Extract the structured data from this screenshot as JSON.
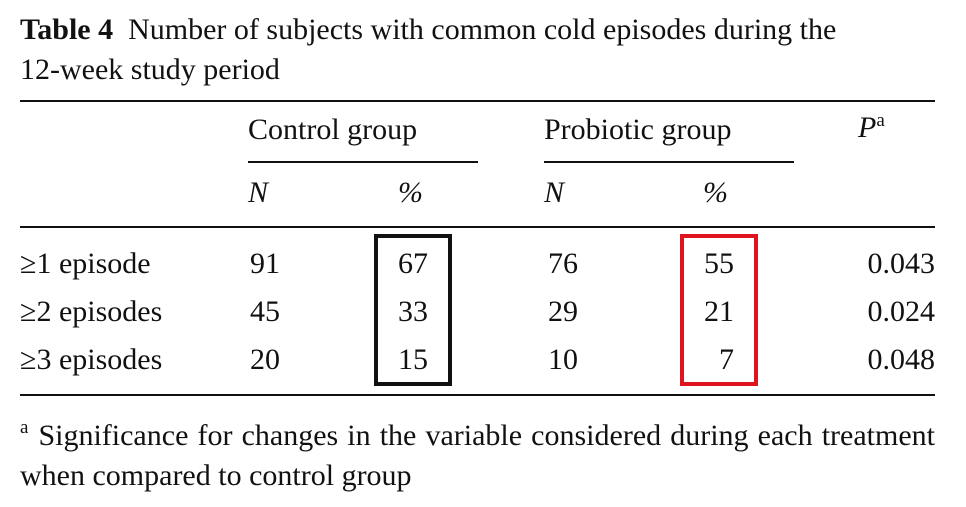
{
  "caption": {
    "label": "Table 4",
    "line1": "Number of subjects with common cold episodes during the",
    "line2": "12-week study period"
  },
  "header": {
    "control_group": "Control group",
    "probiotic_group": "Probiotic group",
    "p_label": "P",
    "p_superscript": "a",
    "n": "N",
    "pct": "%"
  },
  "rows": [
    {
      "label": "≥1 episode",
      "control_n": "91",
      "control_pct": "67",
      "probiotic_n": "76",
      "probiotic_pct": "55",
      "p": "0.043"
    },
    {
      "label": "≥2 episodes",
      "control_n": "45",
      "control_pct": "33",
      "probiotic_n": "29",
      "probiotic_pct": "21",
      "p": "0.024"
    },
    {
      "label": "≥3 episodes",
      "control_n": "20",
      "control_pct": "15",
      "probiotic_n": "10",
      "probiotic_pct": "7",
      "p": "0.048"
    }
  ],
  "footnote": {
    "marker": "a",
    "text": "Significance for changes in the variable considered during each treatment when compared to control group"
  },
  "highlight_colors": {
    "control_pct_box": "#111111",
    "probiotic_pct_box": "#e0141e"
  }
}
